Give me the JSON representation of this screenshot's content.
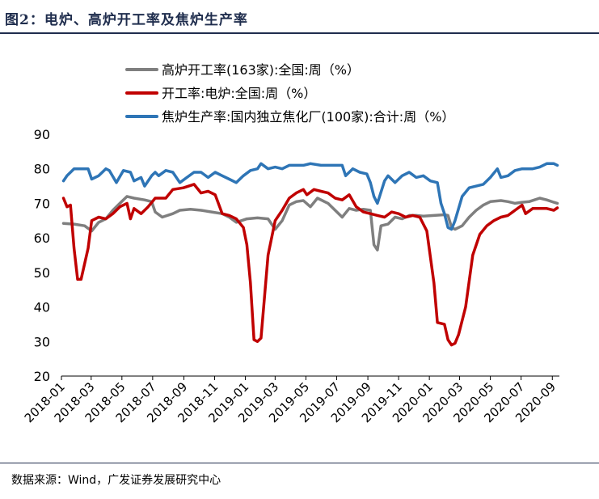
{
  "figure": {
    "title": "图2：电炉、高炉开工率及焦炉生产率",
    "source": "数据来源：Wind，广发证券发展研究中心"
  },
  "chart_data": {
    "type": "line",
    "ylim": [
      20,
      90
    ],
    "yticks": [
      20,
      30,
      40,
      50,
      60,
      70,
      80,
      90
    ],
    "xlim": [
      "2018-01",
      "2020-09"
    ],
    "xticks": [
      "2018-01",
      "2018-03",
      "2018-05",
      "2018-07",
      "2018-09",
      "2018-11",
      "2019-01",
      "2019-03",
      "2019-05",
      "2019-07",
      "2019-09",
      "2019-11",
      "2020-01",
      "2020-03",
      "2020-05",
      "2020-07",
      "2020-09"
    ],
    "grid": false,
    "legend_position": "top",
    "series": [
      {
        "name": "高炉开工率(163家):全国:周（%）",
        "color": "#7f7f7f",
        "points": [
          [
            "2018-01-05",
            64.2
          ],
          [
            "2018-01-26",
            64.0
          ],
          [
            "2018-02-16",
            63.5
          ],
          [
            "2018-03-02",
            62.0
          ],
          [
            "2018-03-16",
            64.5
          ],
          [
            "2018-03-30",
            65.5
          ],
          [
            "2018-04-13",
            68.0
          ],
          [
            "2018-04-27",
            70.0
          ],
          [
            "2018-05-11",
            72.0
          ],
          [
            "2018-05-25",
            71.5
          ],
          [
            "2018-06-15",
            71.0
          ],
          [
            "2018-06-29",
            70.5
          ],
          [
            "2018-07-06",
            67.5
          ],
          [
            "2018-07-20",
            66.0
          ],
          [
            "2018-08-10",
            67.0
          ],
          [
            "2018-08-24",
            68.0
          ],
          [
            "2018-09-14",
            68.3
          ],
          [
            "2018-10-05",
            68.0
          ],
          [
            "2018-10-26",
            67.5
          ],
          [
            "2018-11-16",
            67.0
          ],
          [
            "2018-11-30",
            66.0
          ],
          [
            "2018-12-14",
            64.5
          ],
          [
            "2019-01-04",
            65.5
          ],
          [
            "2019-01-25",
            65.8
          ],
          [
            "2019-02-15",
            65.5
          ],
          [
            "2019-03-01",
            62.5
          ],
          [
            "2019-03-15",
            65.0
          ],
          [
            "2019-03-29",
            69.5
          ],
          [
            "2019-04-12",
            70.5
          ],
          [
            "2019-04-26",
            70.8
          ],
          [
            "2019-05-10",
            69.0
          ],
          [
            "2019-05-24",
            71.5
          ],
          [
            "2019-06-14",
            70.0
          ],
          [
            "2019-06-28",
            68.0
          ],
          [
            "2019-07-12",
            66.0
          ],
          [
            "2019-07-26",
            68.5
          ],
          [
            "2019-08-09",
            68.0
          ],
          [
            "2019-08-23",
            68.3
          ],
          [
            "2019-09-06",
            68.0
          ],
          [
            "2019-09-13",
            58.0
          ],
          [
            "2019-09-20",
            56.5
          ],
          [
            "2019-09-27",
            63.5
          ],
          [
            "2019-10-11",
            64.0
          ],
          [
            "2019-10-25",
            66.0
          ],
          [
            "2019-11-08",
            65.5
          ],
          [
            "2019-11-22",
            66.5
          ],
          [
            "2019-12-06",
            66.5
          ],
          [
            "2019-12-20",
            66.3
          ],
          [
            "2020-01-10",
            66.5
          ],
          [
            "2020-01-31",
            66.7
          ],
          [
            "2020-02-07",
            66.5
          ],
          [
            "2020-02-14",
            63.0
          ],
          [
            "2020-02-21",
            62.5
          ],
          [
            "2020-03-06",
            63.5
          ],
          [
            "2020-03-20",
            66.0
          ],
          [
            "2020-04-03",
            68.0
          ],
          [
            "2020-04-17",
            69.5
          ],
          [
            "2020-05-01",
            70.5
          ],
          [
            "2020-05-22",
            70.8
          ],
          [
            "2020-06-05",
            70.5
          ],
          [
            "2020-06-19",
            70.0
          ],
          [
            "2020-07-03",
            70.3
          ],
          [
            "2020-07-17",
            70.5
          ],
          [
            "2020-08-07",
            71.5
          ],
          [
            "2020-08-21",
            71.0
          ],
          [
            "2020-09-04",
            70.3
          ],
          [
            "2020-09-11",
            70.0
          ]
        ]
      },
      {
        "name": "开工率:电炉:全国:周（%）",
        "color": "#c00000",
        "points": [
          [
            "2018-01-05",
            71.5
          ],
          [
            "2018-01-12",
            69.0
          ],
          [
            "2018-01-19",
            69.5
          ],
          [
            "2018-01-26",
            57.0
          ],
          [
            "2018-02-02",
            48.0
          ],
          [
            "2018-02-09",
            48.0
          ],
          [
            "2018-02-23",
            57.0
          ],
          [
            "2018-03-02",
            65.0
          ],
          [
            "2018-03-16",
            66.0
          ],
          [
            "2018-03-30",
            65.5
          ],
          [
            "2018-04-13",
            67.0
          ],
          [
            "2018-04-27",
            69.0
          ],
          [
            "2018-05-11",
            70.0
          ],
          [
            "2018-05-18",
            65.5
          ],
          [
            "2018-05-25",
            68.5
          ],
          [
            "2018-06-08",
            67.0
          ],
          [
            "2018-06-22",
            69.0
          ],
          [
            "2018-07-06",
            71.5
          ],
          [
            "2018-07-27",
            71.5
          ],
          [
            "2018-08-10",
            74.0
          ],
          [
            "2018-08-31",
            74.5
          ],
          [
            "2018-09-21",
            75.5
          ],
          [
            "2018-10-05",
            73.0
          ],
          [
            "2018-10-19",
            73.5
          ],
          [
            "2018-11-02",
            72.5
          ],
          [
            "2018-11-16",
            67.0
          ],
          [
            "2018-11-30",
            66.5
          ],
          [
            "2018-12-14",
            65.5
          ],
          [
            "2018-12-28",
            63.0
          ],
          [
            "2019-01-04",
            58.0
          ],
          [
            "2019-01-11",
            47.0
          ],
          [
            "2019-01-18",
            30.5
          ],
          [
            "2019-01-25",
            30.0
          ],
          [
            "2019-02-01",
            31.0
          ],
          [
            "2019-02-15",
            55.0
          ],
          [
            "2019-03-01",
            65.0
          ],
          [
            "2019-03-15",
            68.0
          ],
          [
            "2019-03-29",
            71.5
          ],
          [
            "2019-04-12",
            73.0
          ],
          [
            "2019-04-26",
            74.0
          ],
          [
            "2019-05-03",
            72.5
          ],
          [
            "2019-05-17",
            74.0
          ],
          [
            "2019-05-31",
            73.5
          ],
          [
            "2019-06-14",
            73.0
          ],
          [
            "2019-06-28",
            71.5
          ],
          [
            "2019-07-12",
            71.0
          ],
          [
            "2019-07-26",
            72.5
          ],
          [
            "2019-08-09",
            69.0
          ],
          [
            "2019-08-23",
            67.5
          ],
          [
            "2019-09-06",
            67.0
          ],
          [
            "2019-09-20",
            66.5
          ],
          [
            "2019-10-04",
            66.0
          ],
          [
            "2019-10-18",
            67.5
          ],
          [
            "2019-11-01",
            67.0
          ],
          [
            "2019-11-15",
            66.0
          ],
          [
            "2019-11-29",
            66.5
          ],
          [
            "2019-12-13",
            66.0
          ],
          [
            "2019-12-27",
            62.0
          ],
          [
            "2020-01-10",
            47.0
          ],
          [
            "2020-01-17",
            35.5
          ],
          [
            "2020-01-31",
            35.0
          ],
          [
            "2020-02-07",
            30.5
          ],
          [
            "2020-02-14",
            29.0
          ],
          [
            "2020-02-21",
            29.5
          ],
          [
            "2020-02-28",
            32.0
          ],
          [
            "2020-03-13",
            40.0
          ],
          [
            "2020-03-27",
            55.0
          ],
          [
            "2020-04-10",
            61.0
          ],
          [
            "2020-04-24",
            63.5
          ],
          [
            "2020-05-08",
            65.0
          ],
          [
            "2020-05-22",
            66.0
          ],
          [
            "2020-06-05",
            66.5
          ],
          [
            "2020-06-19",
            68.0
          ],
          [
            "2020-07-03",
            69.5
          ],
          [
            "2020-07-10",
            67.0
          ],
          [
            "2020-07-24",
            68.5
          ],
          [
            "2020-08-07",
            68.5
          ],
          [
            "2020-08-21",
            68.5
          ],
          [
            "2020-09-04",
            68.0
          ],
          [
            "2020-09-11",
            68.7
          ]
        ]
      },
      {
        "name": "焦炉生产率:国内独立焦化厂(100家):合计:周（%）",
        "color": "#2e75b6",
        "points": [
          [
            "2018-01-05",
            76.5
          ],
          [
            "2018-01-12",
            78.0
          ],
          [
            "2018-01-26",
            80.0
          ],
          [
            "2018-02-09",
            80.0
          ],
          [
            "2018-02-23",
            80.0
          ],
          [
            "2018-03-02",
            77.0
          ],
          [
            "2018-03-16",
            78.0
          ],
          [
            "2018-03-30",
            80.0
          ],
          [
            "2018-04-06",
            79.5
          ],
          [
            "2018-04-20",
            76.0
          ],
          [
            "2018-05-04",
            79.5
          ],
          [
            "2018-05-18",
            79.0
          ],
          [
            "2018-05-25",
            76.5
          ],
          [
            "2018-06-08",
            77.5
          ],
          [
            "2018-06-15",
            75.0
          ],
          [
            "2018-06-29",
            78.0
          ],
          [
            "2018-07-06",
            79.0
          ],
          [
            "2018-07-13",
            78.0
          ],
          [
            "2018-07-27",
            79.5
          ],
          [
            "2018-08-10",
            79.0
          ],
          [
            "2018-08-24",
            76.0
          ],
          [
            "2018-09-07",
            77.5
          ],
          [
            "2018-09-21",
            79.0
          ],
          [
            "2018-10-05",
            79.0
          ],
          [
            "2018-10-19",
            77.5
          ],
          [
            "2018-11-02",
            79.0
          ],
          [
            "2018-11-16",
            78.0
          ],
          [
            "2018-11-30",
            77.0
          ],
          [
            "2018-12-14",
            76.0
          ],
          [
            "2018-12-28",
            78.0
          ],
          [
            "2019-01-11",
            79.5
          ],
          [
            "2019-01-25",
            80.0
          ],
          [
            "2019-02-01",
            81.5
          ],
          [
            "2019-02-15",
            80.0
          ],
          [
            "2019-03-01",
            80.5
          ],
          [
            "2019-03-15",
            80.0
          ],
          [
            "2019-03-29",
            81.0
          ],
          [
            "2019-04-12",
            81.0
          ],
          [
            "2019-04-26",
            81.0
          ],
          [
            "2019-05-10",
            81.5
          ],
          [
            "2019-05-31",
            81.0
          ],
          [
            "2019-06-28",
            81.0
          ],
          [
            "2019-07-12",
            81.0
          ],
          [
            "2019-07-19",
            78.0
          ],
          [
            "2019-08-02",
            80.0
          ],
          [
            "2019-08-16",
            79.0
          ],
          [
            "2019-08-30",
            78.5
          ],
          [
            "2019-09-06",
            76.0
          ],
          [
            "2019-09-13",
            72.0
          ],
          [
            "2019-09-20",
            70.0
          ],
          [
            "2019-10-04",
            76.5
          ],
          [
            "2019-10-11",
            78.0
          ],
          [
            "2019-10-25",
            76.0
          ],
          [
            "2019-11-08",
            78.0
          ],
          [
            "2019-11-22",
            79.0
          ],
          [
            "2019-12-06",
            77.5
          ],
          [
            "2019-12-20",
            78.0
          ],
          [
            "2020-01-03",
            76.5
          ],
          [
            "2020-01-17",
            76.0
          ],
          [
            "2020-01-24",
            70.0
          ],
          [
            "2020-01-31",
            67.0
          ],
          [
            "2020-02-07",
            63.0
          ],
          [
            "2020-02-14",
            62.5
          ],
          [
            "2020-02-21",
            65.0
          ],
          [
            "2020-03-06",
            72.0
          ],
          [
            "2020-03-20",
            74.5
          ],
          [
            "2020-04-03",
            75.0
          ],
          [
            "2020-04-17",
            75.5
          ],
          [
            "2020-05-01",
            77.5
          ],
          [
            "2020-05-15",
            80.0
          ],
          [
            "2020-05-22",
            77.5
          ],
          [
            "2020-06-05",
            78.0
          ],
          [
            "2020-06-19",
            79.5
          ],
          [
            "2020-07-03",
            80.0
          ],
          [
            "2020-07-24",
            80.0
          ],
          [
            "2020-08-07",
            80.5
          ],
          [
            "2020-08-21",
            81.5
          ],
          [
            "2020-09-04",
            81.5
          ],
          [
            "2020-09-11",
            81.0
          ]
        ]
      }
    ]
  }
}
